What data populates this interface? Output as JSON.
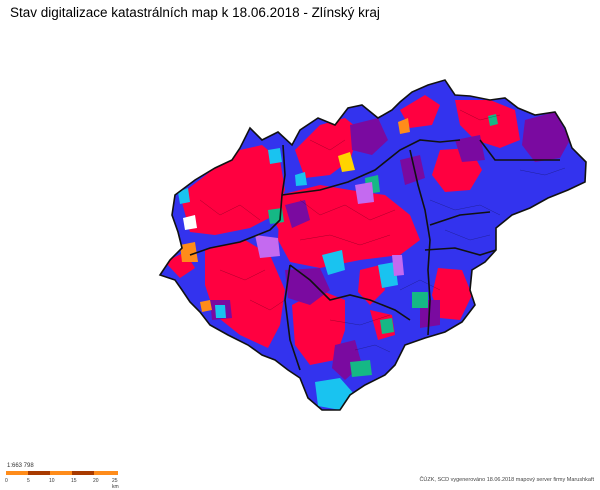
{
  "title": "Stav digitalizace katastrálních map k 18.06.2018 - Zlínský kraj",
  "scale": {
    "ratio": "1:663 798",
    "tick_labels": [
      "0",
      "5",
      "10",
      "15",
      "20",
      "25 km"
    ]
  },
  "credits": "ČÚZK, SCD vygenerováno 18.06.2018 mapový server firmy Marushkaft",
  "colors": {
    "red": "#ff0040",
    "blue": "#3333ee",
    "purple": "#7a0aa0",
    "cyan": "#19c3f0",
    "teal": "#15b885",
    "violet": "#c46af0",
    "orange": "#ff8c1a",
    "yellow": "#ffd400",
    "border": "#111111",
    "scale_dark": "#a83a00",
    "scale_light": "#ff8c1a"
  }
}
